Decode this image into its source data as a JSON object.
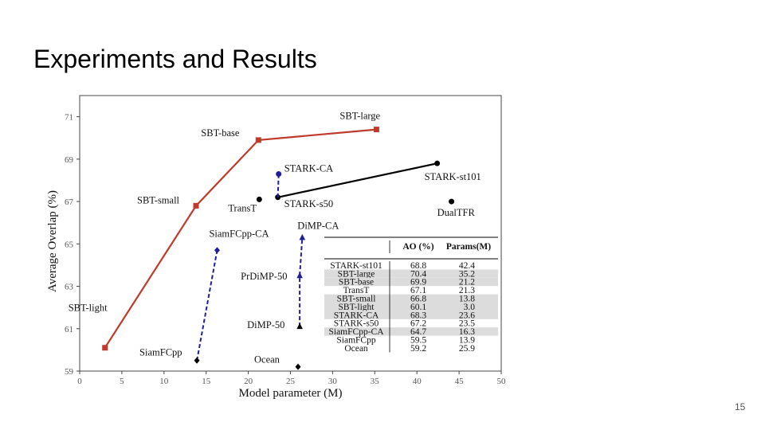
{
  "slide": {
    "title": "Experiments and Results",
    "page_number": "15"
  },
  "chart_data": {
    "type": "scatter",
    "xlabel": "Model parameter (M)",
    "ylabel": "Average Overlap (%)",
    "xlim": [
      0,
      50
    ],
    "ylim": [
      59,
      72
    ],
    "xticks": [
      0,
      5,
      10,
      15,
      20,
      25,
      30,
      35,
      40,
      45,
      50
    ],
    "yticks": [
      59,
      61,
      63,
      65,
      67,
      69,
      71
    ],
    "series": [
      {
        "color": "#c0392b",
        "marker": "square",
        "line": "solid",
        "points": [
          {
            "label": "SBT-light",
            "x": 3.0,
            "y": 60.1
          },
          {
            "label": "SBT-small",
            "x": 13.8,
            "y": 66.8
          },
          {
            "label": "SBT-base",
            "x": 21.2,
            "y": 69.9
          },
          {
            "label": "SBT-large",
            "x": 35.2,
            "y": 70.4
          }
        ]
      },
      {
        "color": "#000000",
        "marker": "circle",
        "line": "solid",
        "points": [
          {
            "label": "STARK-s50",
            "x": 23.5,
            "y": 67.2
          },
          {
            "label": "STARK-st101",
            "x": 42.4,
            "y": 68.8
          }
        ]
      },
      {
        "color": "#1f1f9e",
        "marker": "circle",
        "line": "dashed",
        "points": [
          {
            "label": "",
            "x": 23.5,
            "y": 67.2
          },
          {
            "label": "STARK-CA",
            "x": 23.6,
            "y": 68.3
          }
        ]
      },
      {
        "color": "#1f1f9e",
        "marker": "diamond",
        "line": "dashed",
        "points": [
          {
            "label": "SiamFCpp",
            "x": 13.9,
            "y": 59.5
          },
          {
            "label": "SiamFCpp-CA",
            "x": 16.3,
            "y": 64.7
          }
        ]
      },
      {
        "color": "#1f1f9e",
        "marker": "triangle",
        "line": "dashed",
        "points": [
          {
            "label": "DiMP-50",
            "x": 26.1,
            "y": 61.1
          },
          {
            "label": "PrDiMP-50",
            "x": 26.1,
            "y": 63.5
          },
          {
            "label": "DiMP-CA",
            "x": 26.4,
            "y": 65.3
          }
        ]
      },
      {
        "color": "#000000",
        "marker": "circle",
        "line": "none",
        "points": [
          {
            "label": "TransT",
            "x": 21.3,
            "y": 67.1
          },
          {
            "label": "DualTFR",
            "x": 44.1,
            "y": 67.0
          }
        ]
      },
      {
        "color": "#000000",
        "marker": "diamond",
        "line": "none",
        "points": [
          {
            "label": "Ocean",
            "x": 25.9,
            "y": 59.2
          }
        ]
      }
    ],
    "table": {
      "columns": [
        "",
        "AO (%)",
        "Params(M)"
      ],
      "rows": [
        [
          "STARK-st101",
          "68.8",
          "42.4"
        ],
        [
          "SBT-large",
          "70.4",
          "35.2"
        ],
        [
          "SBT-base",
          "69.9",
          "21.2"
        ],
        [
          "TransT",
          "67.1",
          "21.3"
        ],
        [
          "SBT-small",
          "66.8",
          "13.8"
        ],
        [
          "SBT-light",
          "60.1",
          "3.0"
        ],
        [
          "STARK-CA",
          "68.3",
          "23.6"
        ],
        [
          "STARK-s50",
          "67.2",
          "23.5"
        ],
        [
          "SiamFCpp-CA",
          "64.7",
          "16.3"
        ],
        [
          "SiamFCpp",
          "59.5",
          "13.9"
        ],
        [
          "Ocean",
          "59.2",
          "25.9"
        ]
      ],
      "shaded_rows": [
        1,
        2,
        4,
        5,
        6,
        8
      ]
    }
  }
}
